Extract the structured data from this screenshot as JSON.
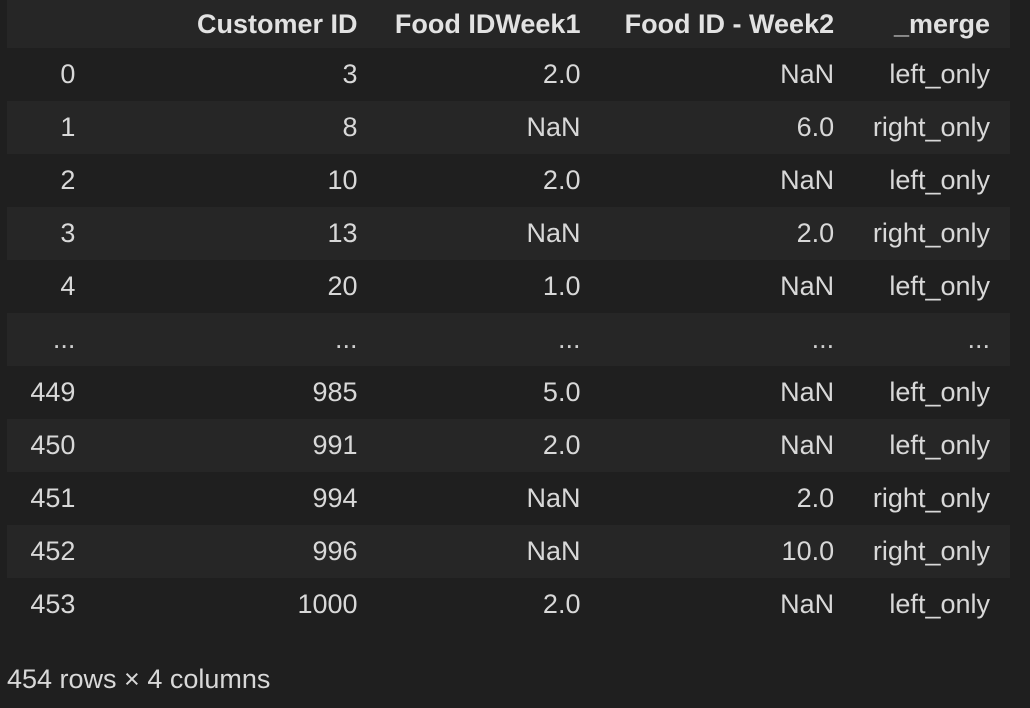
{
  "dataframe": {
    "index_header": "",
    "columns": [
      "Customer ID",
      "Food IDWeek1",
      "Food ID - Week2",
      "_merge"
    ],
    "rows": [
      {
        "index": "0",
        "cells": [
          "3",
          "2.0",
          "NaN",
          "left_only"
        ]
      },
      {
        "index": "1",
        "cells": [
          "8",
          "NaN",
          "6.0",
          "right_only"
        ]
      },
      {
        "index": "2",
        "cells": [
          "10",
          "2.0",
          "NaN",
          "left_only"
        ]
      },
      {
        "index": "3",
        "cells": [
          "13",
          "NaN",
          "2.0",
          "right_only"
        ]
      },
      {
        "index": "4",
        "cells": [
          "20",
          "1.0",
          "NaN",
          "left_only"
        ]
      },
      {
        "index": "...",
        "cells": [
          "...",
          "...",
          "...",
          "..."
        ]
      },
      {
        "index": "449",
        "cells": [
          "985",
          "5.0",
          "NaN",
          "left_only"
        ]
      },
      {
        "index": "450",
        "cells": [
          "991",
          "2.0",
          "NaN",
          "left_only"
        ]
      },
      {
        "index": "451",
        "cells": [
          "994",
          "NaN",
          "2.0",
          "right_only"
        ]
      },
      {
        "index": "452",
        "cells": [
          "996",
          "NaN",
          "10.0",
          "right_only"
        ]
      },
      {
        "index": "453",
        "cells": [
          "1000",
          "2.0",
          "NaN",
          "left_only"
        ]
      }
    ],
    "shape_text": "454 rows × 4 columns"
  },
  "colors": {
    "background": "#1f1f1f",
    "stripe": "#262626",
    "text": "#d8d8d8"
  }
}
